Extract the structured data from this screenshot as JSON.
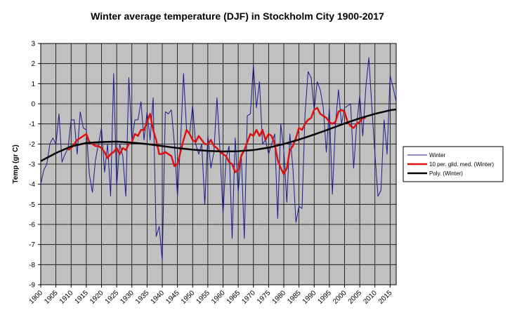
{
  "chart_data": {
    "type": "line",
    "title": "Winter average temperature (DJF) in Stockholm City 1900-2017",
    "ylabel": "Temp (gr C)",
    "xlabel": "",
    "xlim": [
      1900,
      2017
    ],
    "ylim": [
      -9,
      3
    ],
    "y_ticks": [
      3,
      2,
      1,
      0,
      -1,
      -2,
      -3,
      -4,
      -5,
      -6,
      -7,
      -8,
      -9
    ],
    "x_ticks": [
      "1900",
      "1905",
      "1910",
      "1915",
      "1920",
      "1925",
      "1930",
      "1935",
      "1940",
      "1945",
      "1950",
      "1955",
      "1960",
      "1965",
      "1970",
      "1975",
      "1980",
      "1985",
      "1990",
      "1995",
      "2000",
      "2005",
      "2010",
      "2015"
    ],
    "grid": true,
    "legend_position": "right",
    "colors": {
      "plot_bg": "#c0c0c0",
      "winter": "#1a1a8c",
      "moving_avg": "#dd1111",
      "poly": "#000000"
    },
    "series": [
      {
        "name": "Winter",
        "x_start": 1900,
        "values": [
          -4.0,
          -3.3,
          -3.0,
          -2.0,
          -1.7,
          -2.0,
          -0.5,
          -2.9,
          -2.5,
          -2.2,
          -0.8,
          -0.8,
          -2.5,
          -0.4,
          -1.2,
          -1.3,
          -3.5,
          -4.4,
          -2.8,
          -2.0,
          -1.2,
          -3.4,
          -2.0,
          -4.6,
          1.5,
          -4.1,
          -2.0,
          -2.6,
          -4.6,
          1.3,
          -1.8,
          -0.8,
          -0.8,
          0.1,
          -1.8,
          -0.4,
          -1.8,
          0.3,
          -6.6,
          -6.1,
          -7.8,
          -0.4,
          -0.5,
          -0.3,
          -2.0,
          -4.6,
          -2.0,
          1.5,
          -1.3,
          -1.5,
          -0.1,
          -2.0,
          -2.5,
          -2.0,
          -5.0,
          -1.6,
          -3.2,
          -2.4,
          0.3,
          -2.3,
          -5.5,
          -2.7,
          -2.1,
          -6.7,
          -1.7,
          -4.4,
          -2.5,
          -6.7,
          -0.6,
          -0.5,
          1.9,
          -0.2,
          1.1,
          -2.0,
          -1.8,
          -2.5,
          -2.0,
          -1.5,
          -5.7,
          -1.0,
          -2.3,
          -4.9,
          -1.5,
          -3.2,
          -5.9,
          -5.1,
          -5.2,
          -0.5,
          1.6,
          1.3,
          -0.3,
          1.1,
          0.7,
          -0.2,
          -2.4,
          -0.2,
          -4.5,
          -1.0,
          0.7,
          -1.0,
          -0.2,
          -0.1,
          0.0,
          -3.2,
          -1.0,
          0.4,
          -1.6,
          0.8,
          2.3,
          -0.2,
          -2.5,
          -4.6,
          -4.3,
          -0.8,
          -2.5,
          1.4,
          0.8,
          0.1,
          0.7
        ]
      },
      {
        "name": "10 per. glid. med. (Winter)",
        "x_start": 1909,
        "values": [
          -2.3,
          -2.2,
          -2.0,
          -1.8,
          -1.7,
          -1.6,
          -1.5,
          -1.9,
          -2.0,
          -2.1,
          -2.1,
          -2.2,
          -2.4,
          -2.7,
          -2.5,
          -2.4,
          -2.2,
          -2.5,
          -2.2,
          -2.3,
          -2.0,
          -1.9,
          -1.5,
          -1.6,
          -1.3,
          -1.3,
          -0.9,
          -0.5,
          -1.3,
          -1.8,
          -2.5,
          -2.5,
          -2.4,
          -2.5,
          -2.6,
          -3.1,
          -3.0,
          -2.4,
          -1.8,
          -1.3,
          -1.5,
          -1.8,
          -1.9,
          -1.6,
          -1.8,
          -2.0,
          -2.0,
          -1.8,
          -2.1,
          -2.2,
          -2.4,
          -2.5,
          -2.6,
          -2.9,
          -3.0,
          -3.4,
          -3.3,
          -2.6,
          -2.3,
          -1.9,
          -1.5,
          -1.6,
          -1.3,
          -1.6,
          -1.3,
          -1.8,
          -1.5,
          -1.6,
          -2.0,
          -2.8,
          -3.2,
          -3.5,
          -3.2,
          -2.3,
          -2.1,
          -1.7,
          -1.2,
          -1.3,
          -1.0,
          -0.8,
          -0.7,
          -0.3,
          -0.2,
          -0.5,
          -0.6,
          -0.7,
          -0.9,
          -1.0,
          -0.9,
          -0.4,
          -0.3,
          -0.4,
          -0.9,
          -1.1,
          -1.2,
          -1.0,
          -0.9,
          -0.7,
          -0.7
        ]
      },
      {
        "name": "Poly. (Winter)",
        "x_start": 1900,
        "x_step": 5,
        "values": [
          -2.85,
          -2.45,
          -2.12,
          -1.95,
          -1.9,
          -1.88,
          -1.93,
          -2.0,
          -2.1,
          -2.2,
          -2.28,
          -2.34,
          -2.37,
          -2.36,
          -2.3,
          -2.18,
          -2.0,
          -1.78,
          -1.53,
          -1.26,
          -0.98,
          -0.72,
          -0.5,
          -0.32,
          -0.28
        ]
      }
    ]
  }
}
